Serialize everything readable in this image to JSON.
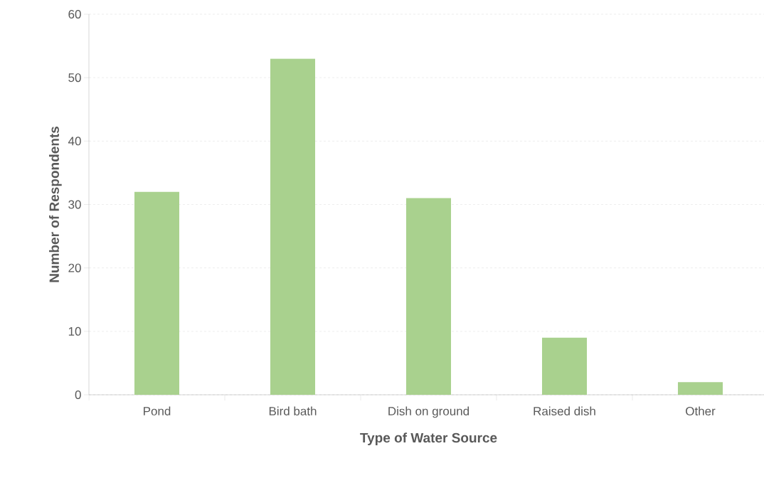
{
  "chart_data": {
    "type": "bar",
    "xlabel": "Type of Water Source",
    "ylabel": "Number of Respondents",
    "categories": [
      "Pond",
      "Bird bath",
      "Dish on ground",
      "Raised dish",
      "Other"
    ],
    "values": [
      32,
      53,
      31,
      9,
      2
    ],
    "color": "#a9d18e",
    "ylim": [
      0,
      60
    ],
    "yticks": [
      0,
      10,
      20,
      30,
      40,
      50,
      60
    ],
    "grid": "y"
  }
}
